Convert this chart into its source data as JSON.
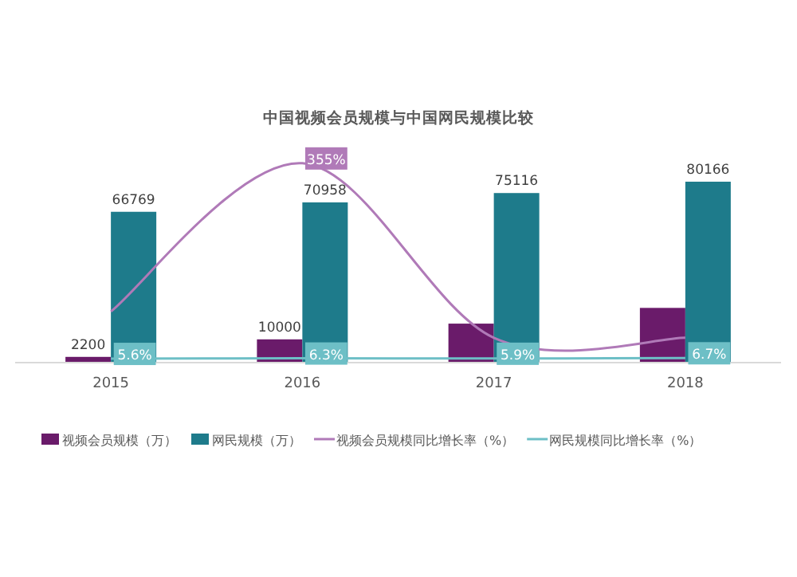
{
  "chart_data": {
    "type": "bar",
    "title": "中国视频会员规模与中国网民规模比较",
    "categories": [
      "2015",
      "2016",
      "2017",
      "2018"
    ],
    "legend": "bottom",
    "series": [
      {
        "name": "视频会员规模（万）",
        "color": "#6a1b6a",
        "values": [
          2200,
          10000,
          17000,
          24000
        ],
        "value_labels": [
          "2200",
          "10000",
          null,
          null
        ]
      },
      {
        "name": "网民规模（万）",
        "color": "#1e7b8b",
        "values": [
          66769,
          70958,
          75116,
          80166
        ],
        "value_labels": [
          "66769",
          "70958",
          "75116",
          "80166"
        ]
      },
      {
        "name": "视频会员规模同比增长率（%）",
        "type": "line",
        "axis": "y2",
        "color": "#b07ab8",
        "values": [
          90,
          355,
          43,
          43
        ],
        "value_labels": [
          null,
          "355%",
          null,
          null
        ]
      },
      {
        "name": "网民规模同比增长率（%）",
        "type": "line",
        "axis": "y2",
        "color": "#6dbfc6",
        "values": [
          5.6,
          6.3,
          5.9,
          6.7
        ],
        "value_labels": [
          "5.6%",
          "6.3%",
          "5.9%",
          "6.7%"
        ]
      }
    ]
  }
}
